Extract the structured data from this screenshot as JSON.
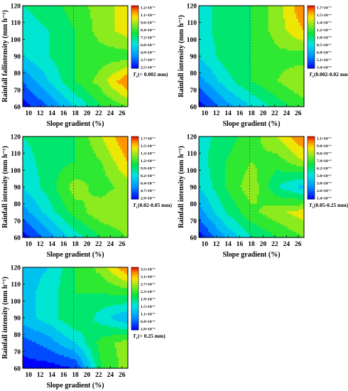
{
  "chart_data": [
    {
      "type": "heatmap",
      "panel": "Tc(< 0.002 mm)",
      "xlabel": "Slope gradient (%)",
      "ylabel": "Rainfall fallintensity (mm h⁻¹)",
      "x_ticks": [
        "10",
        "12",
        "14",
        "16",
        "18",
        "20",
        "22",
        "24",
        "26"
      ],
      "y_ticks": [
        "60",
        "70",
        "80",
        "90",
        "100",
        "110",
        "120"
      ],
      "xlim": [
        9,
        27
      ],
      "ylim": [
        60,
        120
      ],
      "ref_line_x": 17.7,
      "colorbar": {
        "label_main": "T",
        "label_sub": "c",
        "label_rest": "(< 0.002 mm)",
        "ticks": [
          "1.2×10⁻⁴",
          "1.1×10⁻⁴",
          "9.6×10⁻⁵",
          "8.4×10⁻⁵",
          "7.2×10⁻⁵",
          "6.0×10⁻⁵",
          "4.9×10⁻⁵",
          "3.7×10⁻⁵",
          "2.5×10⁻⁵"
        ]
      },
      "grid": {
        "x": [
          9,
          13.5,
          18,
          22.5,
          27
        ],
        "y": [
          60,
          75,
          90,
          105,
          120
        ],
        "z": [
          [
            0.0,
            0.15,
            0.35,
            0.55,
            0.65
          ],
          [
            0.15,
            0.35,
            0.55,
            0.7,
            0.95
          ],
          [
            0.35,
            0.45,
            0.55,
            0.6,
            0.6
          ],
          [
            0.4,
            0.45,
            0.55,
            0.7,
            0.8
          ],
          [
            0.45,
            0.5,
            0.6,
            0.7,
            0.8
          ]
        ]
      }
    },
    {
      "type": "heatmap",
      "panel": "Tc(0.002-0.02 mm)",
      "xlabel": "Slope gradient (%)",
      "ylabel": "Rainfall intensity (mm h⁻¹)",
      "x_ticks": [
        "10",
        "12",
        "14",
        "16",
        "18",
        "20",
        "22",
        "24",
        "26"
      ],
      "y_ticks": [
        "60",
        "70",
        "80",
        "90",
        "100",
        "110",
        "120"
      ],
      "xlim": [
        9,
        27
      ],
      "ylim": [
        60,
        120
      ],
      "ref_line_x": 17.7,
      "colorbar": {
        "label_main": "T",
        "label_sub": "c",
        "label_rest": "(0.002-0.02 mm)",
        "ticks": [
          "1.7×10⁻⁴",
          "1.5×10⁻⁴",
          "1.4×10⁻⁴",
          "1.2×10⁻⁴",
          "1.0×10⁻⁴",
          "8.5×10⁻⁵",
          "6.8×10⁻⁵",
          "5.1×10⁻⁵",
          "3.4×10⁻⁵"
        ]
      },
      "grid": {
        "x": [
          9,
          13.5,
          18,
          22.5,
          27
        ],
        "y": [
          60,
          75,
          90,
          105,
          120
        ],
        "z": [
          [
            0.0,
            0.2,
            0.35,
            0.5,
            0.6
          ],
          [
            0.2,
            0.4,
            0.55,
            0.65,
            0.75
          ],
          [
            0.35,
            0.5,
            0.55,
            0.62,
            0.6
          ],
          [
            0.4,
            0.5,
            0.55,
            0.7,
            0.85
          ],
          [
            0.4,
            0.5,
            0.55,
            0.7,
            0.95
          ]
        ]
      }
    },
    {
      "type": "heatmap",
      "panel": "Tc(0.02-0.05 mm)",
      "xlabel": "Slope gradient (%)",
      "ylabel": "Rainfall intensity (mm h⁻¹)",
      "x_ticks": [
        "10",
        "12",
        "14",
        "16",
        "18",
        "20",
        "22",
        "24",
        "26"
      ],
      "y_ticks": [
        "60",
        "70",
        "80",
        "90",
        "100",
        "110",
        "120"
      ],
      "xlim": [
        9,
        27
      ],
      "ylim": [
        60,
        120
      ],
      "ref_line_x": 17.7,
      "colorbar": {
        "label_main": "T",
        "label_sub": "c",
        "label_rest": "(0.02-0.05 mm)",
        "ticks": [
          "1.7×10⁻⁴",
          "1.5×10⁻⁴",
          "1.3×10⁻⁴",
          "1.2×10⁻⁴",
          "9.9×10⁻⁵",
          "8.2×10⁻⁵",
          "6.4×10⁻⁵",
          "4.7×10⁻⁵",
          "2.9×10⁻⁵"
        ]
      },
      "grid": {
        "x": [
          9,
          13.5,
          18,
          22.5,
          27
        ],
        "y": [
          60,
          75,
          90,
          105,
          120
        ],
        "z": [
          [
            0.0,
            0.2,
            0.4,
            0.55,
            0.65
          ],
          [
            0.2,
            0.4,
            0.6,
            0.72,
            0.75
          ],
          [
            0.35,
            0.5,
            0.7,
            0.6,
            0.7
          ],
          [
            0.4,
            0.5,
            0.55,
            0.65,
            0.85
          ],
          [
            0.45,
            0.5,
            0.55,
            0.75,
            0.95
          ]
        ]
      }
    },
    {
      "type": "heatmap",
      "panel": "Tc(0.05-0.25 mm)",
      "xlabel": "Slope gradient (%)",
      "ylabel": "Rainfall intensity (mm h⁻¹)",
      "x_ticks": [
        "10",
        "12",
        "14",
        "16",
        "18",
        "20",
        "22",
        "24",
        "26"
      ],
      "y_ticks": [
        "60",
        "70",
        "80",
        "90",
        "100",
        "110",
        "120"
      ],
      "xlim": [
        9,
        27
      ],
      "ylim": [
        60,
        120
      ],
      "ref_line_x": 17.7,
      "colorbar": {
        "label_main": "T",
        "label_sub": "c",
        "label_rest": "(0.05-0.25 mm)",
        "ticks": [
          "1.1×10⁻⁴",
          "9.8×10⁻⁵",
          "8.6×10⁻⁵",
          "7.4×10⁻⁵",
          "6.2×10⁻⁵",
          "5.0×10⁻⁵",
          "3.8×10⁻⁵",
          "2.6×10⁻⁵",
          "1.4×10⁻⁵"
        ]
      },
      "grid": {
        "x": [
          9,
          13.5,
          18,
          22.5,
          27
        ],
        "y": [
          60,
          75,
          90,
          105,
          120
        ],
        "z": [
          [
            0.0,
            0.25,
            0.45,
            0.55,
            0.65
          ],
          [
            0.2,
            0.45,
            0.62,
            0.72,
            0.8
          ],
          [
            0.35,
            0.55,
            0.72,
            0.45,
            0.3
          ],
          [
            0.4,
            0.55,
            0.65,
            0.6,
            0.75
          ],
          [
            0.4,
            0.5,
            0.6,
            0.75,
            0.95
          ]
        ]
      }
    },
    {
      "type": "heatmap",
      "panel": "Tc(> 0.25 mm)",
      "xlabel": "Slope gradient (%)",
      "ylabel": "Rainfall intensity (mm h⁻¹)",
      "x_ticks": [
        "10",
        "12",
        "14",
        "16",
        "18",
        "20",
        "22",
        "24",
        "26"
      ],
      "y_ticks": [
        "60",
        "70",
        "80",
        "90",
        "100",
        "110",
        "120"
      ],
      "xlim": [
        9,
        27
      ],
      "ylim": [
        60,
        120
      ],
      "ref_line_x": 17.7,
      "colorbar": {
        "label_main": "T",
        "label_sub": "c",
        "label_rest": "(> 0.25 mm)",
        "ticks": [
          "3.5×10⁻⁵",
          "3.1×10⁻⁵",
          "2.7×10⁻⁵",
          "2.3×10⁻⁵",
          "1.9×10⁻⁵",
          "1.5×10⁻⁵",
          "1.1×10⁻⁵",
          "6.8×10⁻⁶",
          "2.8×10⁻⁶"
        ]
      },
      "grid": {
        "x": [
          9,
          13.5,
          18,
          22.5,
          27
        ],
        "y": [
          60,
          75,
          90,
          105,
          120
        ],
        "z": [
          [
            0.0,
            0.0,
            0.05,
            0.55,
            0.7
          ],
          [
            0.1,
            0.2,
            0.35,
            0.6,
            0.7
          ],
          [
            0.3,
            0.4,
            0.55,
            0.4,
            0.25
          ],
          [
            0.3,
            0.4,
            0.55,
            0.55,
            0.6
          ],
          [
            0.3,
            0.35,
            0.55,
            0.7,
            0.95
          ]
        ]
      }
    }
  ]
}
